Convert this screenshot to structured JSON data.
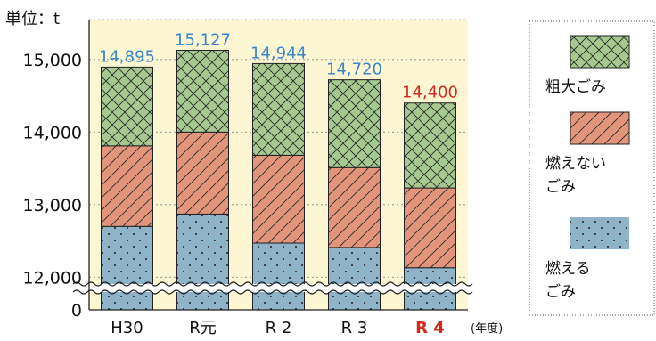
{
  "chart_data": {
    "type": "bar",
    "stacked": true,
    "unit_label": "単位：t",
    "xlabel": "(年度)",
    "categories": [
      "H30",
      "R元",
      "R 2",
      "R 3",
      "R 4"
    ],
    "highlight_category": "R 4",
    "totals": [
      "14,895",
      "15,127",
      "14,944",
      "14,720",
      "14,400"
    ],
    "total_colors": [
      "#3a86c8",
      "#3a86c8",
      "#3a86c8",
      "#3a86c8",
      "#d42a1e"
    ],
    "series": [
      {
        "name": "燃える\nごみ",
        "pattern": "dots",
        "color": "#8fb3c9",
        "values": [
          12700,
          12870,
          12470,
          12410,
          12130
        ]
      },
      {
        "name": "燃えない\nごみ",
        "pattern": "hatch",
        "color": "#e2957a",
        "values": [
          1110,
          1130,
          1210,
          1100,
          1100
        ]
      },
      {
        "name": "粗大ごみ",
        "pattern": "crosshatch",
        "color": "#a5c98f",
        "values": [
          1085,
          1127,
          1264,
          1210,
          1170
        ]
      }
    ],
    "yticks": [
      "15,000",
      "14,000",
      "13,000",
      "12,000",
      "0"
    ],
    "ytick_values": [
      15000,
      14000,
      13000,
      12000
    ],
    "ylim": [
      11550,
      15550
    ],
    "axis_break": true,
    "grid": "dashed-horizontal",
    "plot_background": "#fdf6d2",
    "legend_position": "right"
  }
}
